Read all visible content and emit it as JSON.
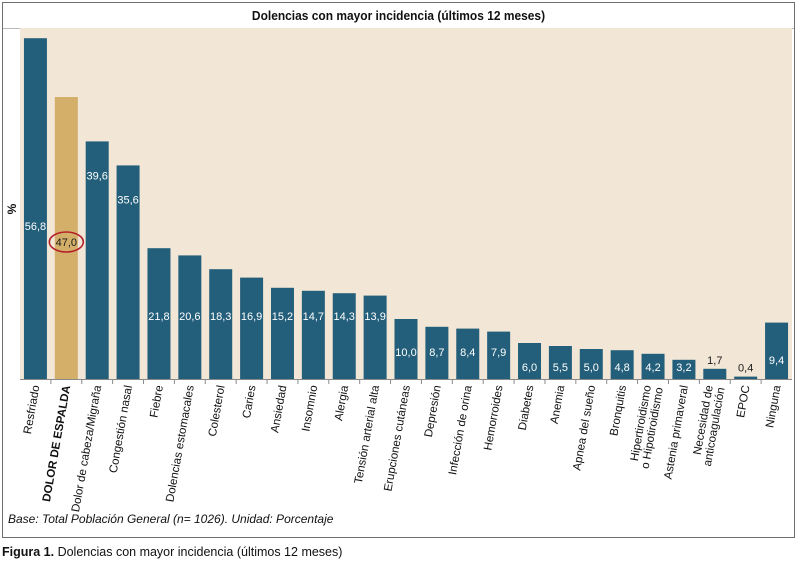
{
  "figure_caption": {
    "label": "Figura 1.",
    "text": "Dolencias con mayor incidencia (últimos 12 meses)"
  },
  "footnote": "Base: Total Población General (n= 1026). Unidad: Porcentaje",
  "colors": {
    "plot_background": "#f2e6d6",
    "bar": "#235f7b",
    "highlight_bar": "#d4af6a",
    "highlight_ellipse": "#b3202a",
    "frame": "#6f6f6f"
  },
  "chart_data": {
    "type": "bar",
    "title": "Dolencias con mayor incidencia (últimos 12 meses)",
    "ylabel": "%",
    "xlabel": "",
    "ylim": [
      0,
      60
    ],
    "grid": false,
    "categories": [
      "Resfriado",
      "DOLOR DE ESPALDA",
      "Dolor de cabeza/Migraña",
      "Congestión nasal",
      "Fiebre",
      "Dolencias estomacales",
      "Colesterol",
      "Caries",
      "Ansiedad",
      "Insomnio",
      "Alergia",
      "Tensión arterial alta",
      "Erupciones cutáneas",
      "Depresión",
      "Infección de orina",
      "Hemorroides",
      "Diabetes",
      "Anemia",
      "Apnea del sueño",
      "Bronquitis",
      "Hipertiroidismo\no Hipotiroidismo",
      "Astenia primaveral",
      "Necesidad de\nanticoagulación",
      "EPOC",
      "Ninguna"
    ],
    "values": [
      56.8,
      47.0,
      39.6,
      35.6,
      21.8,
      20.6,
      18.3,
      16.9,
      15.2,
      14.7,
      14.3,
      13.9,
      10.0,
      8.7,
      8.4,
      7.9,
      6.0,
      5.5,
      5.0,
      4.8,
      4.2,
      3.2,
      1.7,
      0.4,
      9.4
    ],
    "value_labels": [
      "56,8",
      "47,0",
      "39,6",
      "35,6",
      "21,8",
      "20,6",
      "18,3",
      "16,9",
      "15,2",
      "14,7",
      "14,3",
      "13,9",
      "10,0",
      "8,7",
      "8,4",
      "7,9",
      "6,0",
      "5,5",
      "5,0",
      "4,8",
      "4,2",
      "3,2",
      "1,7",
      "0,4",
      "9,4"
    ],
    "highlight_index": 1
  }
}
